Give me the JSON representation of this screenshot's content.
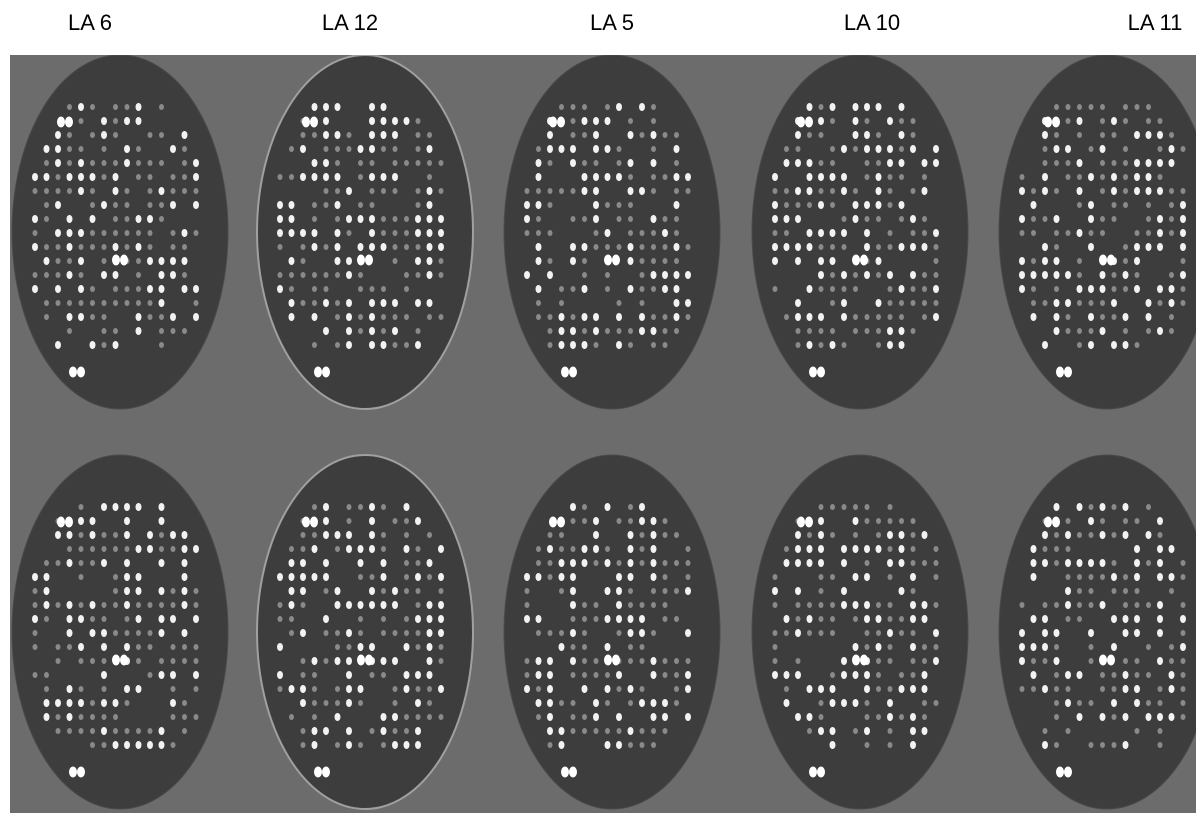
{
  "labels": [
    "LA 6",
    "LA 12",
    "LA 5",
    "LA 10",
    "LA 11"
  ]
}
